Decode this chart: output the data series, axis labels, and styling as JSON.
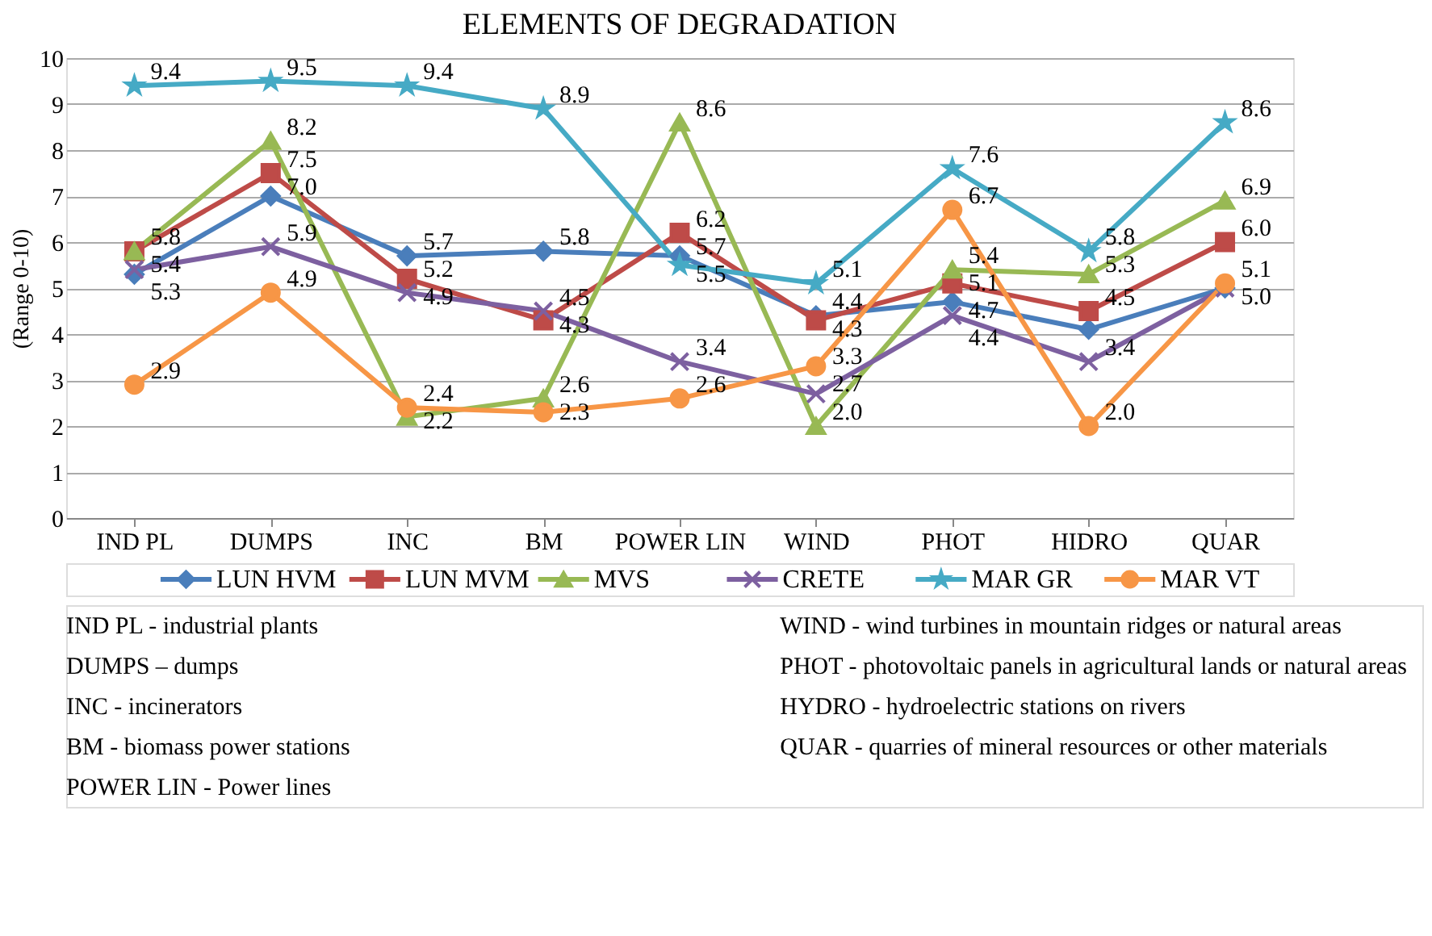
{
  "chart_data": {
    "type": "line",
    "title": "ELEMENTS OF DEGRADATION",
    "ylabel": "(Range 0-10)",
    "categories": [
      "IND PL",
      "DUMPS",
      "INC",
      "BM",
      "POWER LIN",
      "WIND",
      "PHOT",
      "HIDRO",
      "QUAR"
    ],
    "ylim": [
      0,
      10
    ],
    "yticks": [
      0,
      1,
      2,
      3,
      4,
      5,
      6,
      7,
      8,
      9,
      10
    ],
    "grid": "y",
    "legend": "bottom",
    "series": [
      {
        "name": "LUN HVM",
        "color": "#4a7ebb",
        "marker": "diamond",
        "values": [
          5.3,
          7.0,
          5.7,
          5.8,
          5.7,
          4.4,
          4.7,
          4.1,
          5.0
        ],
        "value_labels": [
          "5.3",
          "7.0",
          "5.7",
          "5.8",
          "5.7",
          "4.4",
          "4.7",
          null,
          null
        ]
      },
      {
        "name": "LUN MVM",
        "color": "#be4b48",
        "marker": "square",
        "values": [
          5.8,
          7.5,
          5.2,
          4.3,
          6.2,
          4.3,
          5.1,
          4.5,
          6.0
        ],
        "value_labels": [
          "5.8",
          "7.5",
          "5.2",
          "4.3",
          "6.2",
          "4.3",
          "5.1",
          "4.5",
          "6.0"
        ]
      },
      {
        "name": "MVS",
        "color": "#98b954",
        "marker": "triangle",
        "values": [
          5.8,
          8.2,
          2.2,
          2.6,
          8.6,
          2.0,
          5.4,
          5.3,
          6.9
        ],
        "value_labels": [
          null,
          "8.2",
          "2.2",
          "2.6",
          "8.6",
          "2.0",
          "5.4",
          "5.3",
          "6.9"
        ]
      },
      {
        "name": "CRETE",
        "color": "#7d60a0",
        "marker": "cross",
        "values": [
          5.4,
          5.9,
          4.9,
          4.5,
          3.4,
          2.7,
          4.4,
          3.4,
          5.0
        ],
        "value_labels": [
          "5.4",
          "5.9",
          "4.9",
          "4.5",
          "3.4",
          "2.7",
          "4.4",
          "3.4",
          "5.0"
        ]
      },
      {
        "name": "MAR GR",
        "color": "#46aac5",
        "marker": "star",
        "values": [
          9.4,
          9.5,
          9.4,
          8.9,
          5.5,
          5.1,
          7.6,
          5.8,
          8.6
        ],
        "value_labels": [
          "9.4",
          "9.5",
          "9.4",
          "8.9",
          "5.5",
          "5.1",
          "7.6",
          "5.8",
          "8.6"
        ]
      },
      {
        "name": "MAR VT",
        "color": "#f79646",
        "marker": "circle",
        "values": [
          2.9,
          4.9,
          2.4,
          2.3,
          2.6,
          3.3,
          6.7,
          2.0,
          5.1
        ],
        "value_labels": [
          "2.9",
          "4.9",
          "2.4",
          "2.3",
          "2.6",
          "3.3",
          "6.7",
          "2.0",
          "5.1"
        ]
      }
    ],
    "annotations": [
      "IND PL - industrial plants",
      "DUMPS – dumps",
      "INC - incinerators",
      "BM - biomass power stations",
      "POWER LIN - Power lines",
      "WIND - wind turbines in mountain ridges or natural areas",
      "PHOT - photovoltaic panels in agricultural lands or natural areas",
      "HYDRO - hydroelectric stations on rivers",
      "QUAR - quarries of mineral resources or other materials"
    ]
  }
}
